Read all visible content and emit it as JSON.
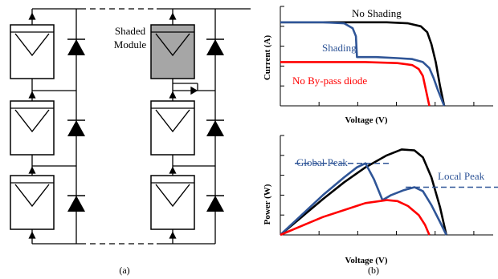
{
  "panel_a": {
    "caption": "(a)",
    "shaded_label_line1": "Shaded",
    "shaded_label_line2": "Module"
  },
  "panel_b": {
    "caption": "(b)"
  },
  "colors": {
    "no_shading": "#000000",
    "shading": "#2f5597",
    "no_bypass": "#ff0000",
    "shaded_module_fill": "#a6a6a6"
  },
  "chart_data": [
    {
      "type": "line",
      "title": "",
      "xlabel": "Voltage (V)",
      "ylabel": "Current (A)",
      "xlim": [
        0,
        1
      ],
      "ylim": [
        0,
        1
      ],
      "grid": false,
      "series": [
        {
          "name": "No Shading",
          "x": [
            0,
            0.3,
            0.5,
            0.6,
            0.66,
            0.69,
            0.71,
            0.73,
            0.75,
            0.77
          ],
          "y": [
            0.84,
            0.84,
            0.84,
            0.83,
            0.8,
            0.74,
            0.62,
            0.44,
            0.2,
            0.0
          ]
        },
        {
          "name": "Shading",
          "x": [
            0,
            0.2,
            0.3,
            0.34,
            0.355,
            0.36,
            0.45,
            0.55,
            0.62,
            0.67,
            0.7,
            0.72,
            0.74,
            0.77
          ],
          "y": [
            0.84,
            0.84,
            0.83,
            0.78,
            0.7,
            0.49,
            0.49,
            0.48,
            0.47,
            0.44,
            0.38,
            0.28,
            0.16,
            0.0
          ]
        },
        {
          "name": "No By-pass diode",
          "x": [
            0,
            0.2,
            0.4,
            0.55,
            0.62,
            0.65,
            0.67,
            0.685,
            0.7
          ],
          "y": [
            0.44,
            0.44,
            0.44,
            0.43,
            0.41,
            0.37,
            0.3,
            0.15,
            0.0
          ]
        }
      ]
    },
    {
      "type": "line",
      "title": "",
      "xlabel": "Voltage (V)",
      "ylabel": "Power (W)",
      "xlim": [
        0,
        1
      ],
      "ylim": [
        0,
        1
      ],
      "grid": false,
      "series": [
        {
          "name": "No Shading",
          "x": [
            0,
            0.1,
            0.2,
            0.3,
            0.4,
            0.5,
            0.57,
            0.63,
            0.67,
            0.71,
            0.75,
            0.78
          ],
          "y": [
            0.0,
            0.18,
            0.36,
            0.53,
            0.68,
            0.8,
            0.86,
            0.85,
            0.78,
            0.58,
            0.28,
            0.0
          ]
        },
        {
          "name": "Shading",
          "x": [
            0,
            0.1,
            0.2,
            0.3,
            0.36,
            0.4,
            0.44,
            0.48,
            0.52,
            0.58,
            0.63,
            0.67,
            0.71,
            0.75,
            0.78
          ],
          "y": [
            0.0,
            0.2,
            0.4,
            0.58,
            0.68,
            0.72,
            0.56,
            0.35,
            0.4,
            0.45,
            0.48,
            0.44,
            0.3,
            0.13,
            0.0
          ]
        },
        {
          "name": "No By-pass diode",
          "x": [
            0,
            0.1,
            0.2,
            0.3,
            0.4,
            0.5,
            0.55,
            0.6,
            0.65,
            0.68,
            0.7
          ],
          "y": [
            0.0,
            0.09,
            0.18,
            0.25,
            0.32,
            0.35,
            0.34,
            0.29,
            0.2,
            0.1,
            0.0
          ]
        }
      ],
      "annotations": [
        {
          "text": "Global Peak",
          "x": 0.4,
          "y": 0.72,
          "style": "dashed-level"
        },
        {
          "text": "Local Peak",
          "x": 0.63,
          "y": 0.48,
          "style": "dashed-level"
        }
      ]
    }
  ]
}
